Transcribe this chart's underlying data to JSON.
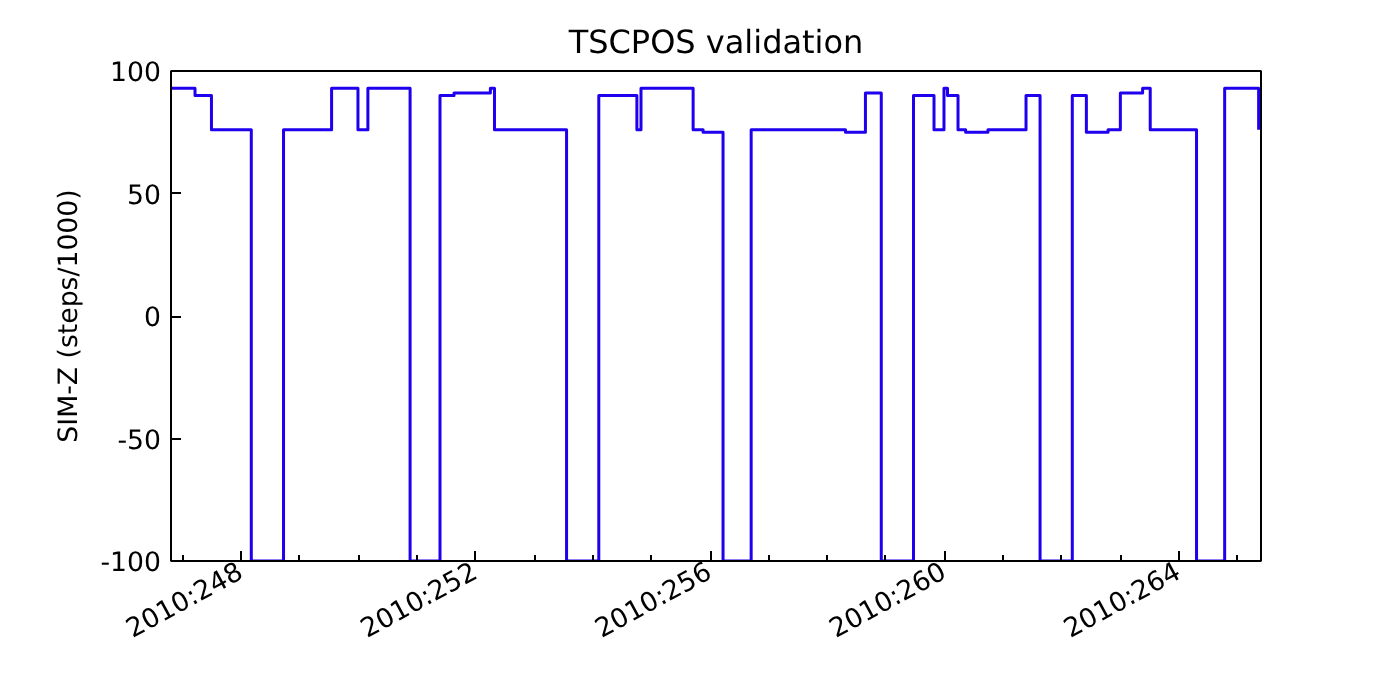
{
  "chart_data": {
    "type": "step",
    "title": "TSCPOS validation",
    "ylabel": "SIM-Z (steps/1000)",
    "x": [
      "2010-09-03T19:12",
      "2010-09-04T05:02",
      "2010-09-04T11:46",
      "2010-09-05T04:05",
      "2010-09-05T17:17",
      "2010-09-06T12:58",
      "2010-09-06T23:46",
      "2010-09-07T03:50",
      "2010-09-07T21:07",
      "2010-09-08T09:22",
      "2010-09-08T15:07",
      "2010-09-09T06:00",
      "2010-09-09T07:41",
      "2010-09-10T13:12",
      "2010-09-11T02:24",
      "2010-09-11T18:00",
      "2010-09-11T19:41",
      "2010-09-12T17:02",
      "2010-09-12T21:07",
      "2010-09-13T05:17",
      "2010-09-13T16:48",
      "2010-09-15T07:26",
      "2010-09-15T15:36",
      "2010-09-15T22:05",
      "2010-09-16T11:17",
      "2010-09-16T19:41",
      "2010-09-16T23:46",
      "2010-09-17T01:12",
      "2010-09-17T05:31",
      "2010-09-17T08:38",
      "2010-09-17T17:46",
      "2010-09-18T09:22",
      "2010-09-18T15:07",
      "2010-09-19T04:19",
      "2010-09-19T10:05",
      "2010-09-19T18:58",
      "2010-09-20T00:00",
      "2010-09-20T09:07",
      "2010-09-20T12:14",
      "2010-09-21T07:12",
      "2010-09-21T18:43",
      "2010-09-22T08:38"
    ],
    "series": [
      {
        "color": "#1f00ee",
        "values": [
          93,
          90,
          76,
          -100,
          76,
          93,
          76,
          93,
          -100,
          90,
          91,
          93,
          76,
          -100,
          90,
          76,
          93,
          76,
          75,
          -100,
          76,
          75,
          91,
          -100,
          90,
          76,
          93,
          90,
          76,
          75,
          76,
          90,
          -100,
          90,
          75,
          76,
          91,
          93,
          76,
          -100,
          93,
          76
        ]
      }
    ],
    "xlim": [
      "2010-09-03T19:12",
      "2010-09-22T09:36"
    ],
    "ylim": [
      -100,
      100
    ],
    "xticks": [
      {
        "value": "2010-09-05",
        "label": "2010:248"
      },
      {
        "value": "2010-09-09",
        "label": "2010:252"
      },
      {
        "value": "2010-09-13",
        "label": "2010:256"
      },
      {
        "value": "2010-09-17",
        "label": "2010:260"
      },
      {
        "value": "2010-09-21",
        "label": "2010:264"
      }
    ],
    "yticks": [
      -100,
      -50,
      0,
      50,
      100
    ],
    "grid": false,
    "line_style": "solid"
  }
}
